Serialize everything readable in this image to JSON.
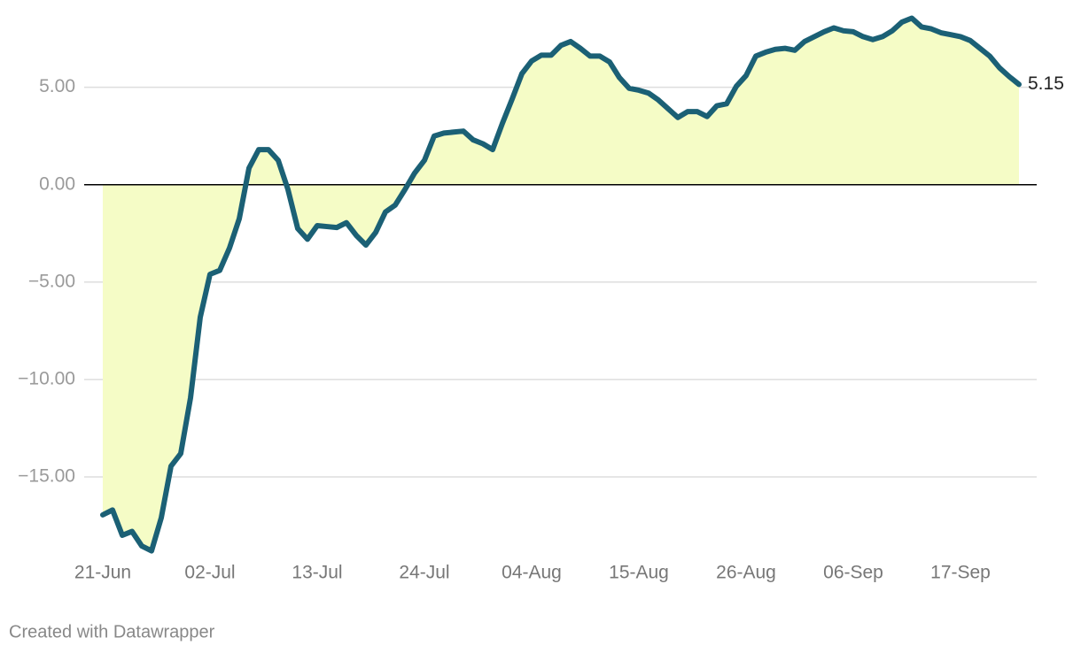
{
  "chart_data": {
    "type": "area-line",
    "x": [
      "21-Jun",
      "22-Jun",
      "23-Jun",
      "24-Jun",
      "25-Jun",
      "26-Jun",
      "27-Jun",
      "28-Jun",
      "29-Jun",
      "30-Jun",
      "01-Jul",
      "02-Jul",
      "03-Jul",
      "04-Jul",
      "05-Jul",
      "06-Jul",
      "07-Jul",
      "08-Jul",
      "09-Jul",
      "10-Jul",
      "11-Jul",
      "12-Jul",
      "13-Jul",
      "14-Jul",
      "15-Jul",
      "16-Jul",
      "17-Jul",
      "18-Jul",
      "19-Jul",
      "20-Jul",
      "21-Jul",
      "22-Jul",
      "23-Jul",
      "24-Jul",
      "25-Jul",
      "26-Jul",
      "27-Jul",
      "28-Jul",
      "29-Jul",
      "30-Jul",
      "31-Jul",
      "01-Aug",
      "02-Aug",
      "03-Aug",
      "04-Aug",
      "05-Aug",
      "06-Aug",
      "07-Aug",
      "08-Aug",
      "09-Aug",
      "10-Aug",
      "11-Aug",
      "12-Aug",
      "13-Aug",
      "14-Aug",
      "15-Aug",
      "16-Aug",
      "17-Aug",
      "18-Aug",
      "19-Aug",
      "20-Aug",
      "21-Aug",
      "22-Aug",
      "23-Aug",
      "24-Aug",
      "25-Aug",
      "26-Aug",
      "27-Aug",
      "28-Aug",
      "29-Aug",
      "30-Aug",
      "31-Aug",
      "01-Sep",
      "02-Sep",
      "03-Sep",
      "04-Sep",
      "05-Sep",
      "06-Sep",
      "07-Sep",
      "08-Sep",
      "09-Sep",
      "10-Sep",
      "11-Sep",
      "12-Sep",
      "13-Sep",
      "14-Sep",
      "15-Sep",
      "16-Sep",
      "17-Sep",
      "18-Sep",
      "19-Sep",
      "20-Sep",
      "21-Sep",
      "22-Sep",
      "23-Sep"
    ],
    "values": [
      -16.95,
      -16.7,
      -18.0,
      -17.8,
      -18.55,
      -18.8,
      -17.1,
      -14.45,
      -13.8,
      -10.95,
      -6.8,
      -4.6,
      -4.4,
      -3.25,
      -1.75,
      0.85,
      1.8,
      1.8,
      1.25,
      -0.25,
      -2.25,
      -2.8,
      -2.1,
      -2.15,
      -2.2,
      -1.95,
      -2.6,
      -3.1,
      -2.45,
      -1.4,
      -1.05,
      -0.25,
      0.6,
      1.25,
      2.5,
      2.65,
      2.7,
      2.75,
      2.3,
      2.1,
      1.8,
      3.15,
      4.4,
      5.7,
      6.35,
      6.65,
      6.65,
      7.15,
      7.35,
      7.0,
      6.6,
      6.6,
      6.3,
      5.5,
      4.95,
      4.85,
      4.7,
      4.35,
      3.9,
      3.45,
      3.75,
      3.75,
      3.5,
      4.05,
      4.15,
      5.05,
      5.6,
      6.6,
      6.8,
      6.95,
      7.0,
      6.9,
      7.35,
      7.6,
      7.85,
      8.05,
      7.9,
      7.85,
      7.6,
      7.45,
      7.6,
      7.9,
      8.35,
      8.55,
      8.1,
      8.0,
      7.8,
      7.7,
      7.6,
      7.4,
      7.0,
      6.6,
      6.0,
      5.55,
      5.15
    ],
    "color": "#1b6075",
    "area_color": "#f5fcc6",
    "ylim": [
      -19,
      8.8
    ],
    "yticks": [
      {
        "value": -15,
        "label": "−15.00"
      },
      {
        "value": -10,
        "label": "−10.00"
      },
      {
        "value": -5,
        "label": "−5.00"
      },
      {
        "value": 0,
        "label": "0.00"
      },
      {
        "value": 5,
        "label": "5.00"
      }
    ],
    "xticks": [
      "21-Jun",
      "02-Jul",
      "13-Jul",
      "24-Jul",
      "04-Aug",
      "15-Aug",
      "26-Aug",
      "06-Sep",
      "17-Sep"
    ],
    "grid": true,
    "credit": "Created with Datawrapper"
  }
}
